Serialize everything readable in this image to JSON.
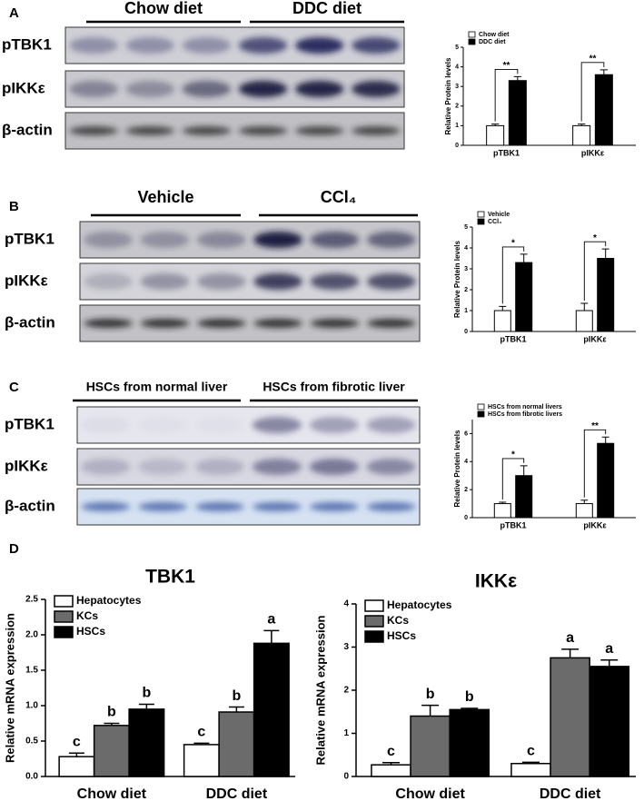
{
  "blots": [
    {
      "label": "A",
      "groups": [
        "Chow diet",
        "DDC diet"
      ],
      "rows": [
        "pTBK1",
        "pIKKε",
        "β-actin"
      ]
    },
    {
      "label": "B",
      "groups": [
        "Vehicle",
        "CCl₄"
      ],
      "rows": [
        "pTBK1",
        "pIKKε",
        "β-actin"
      ]
    },
    {
      "label": "C",
      "groups": [
        "HSCs from normal liver",
        "HSCs from fibrotic liver"
      ],
      "rows": [
        "pTBK1",
        "pIKKε",
        "β-actin"
      ]
    }
  ],
  "label_d": "D",
  "chart_data": [
    {
      "type": "bar",
      "ylabel": "Relative Protein levels",
      "categories": [
        "pTBK1",
        "pIKKε"
      ],
      "series": [
        {
          "name": "Chow diet",
          "color": "#ffffff",
          "values": [
            1,
            1
          ],
          "errors": [
            0.08,
            0.08
          ]
        },
        {
          "name": "DDC diet",
          "color": "#000000",
          "values": [
            3.3,
            3.6
          ],
          "errors": [
            0.2,
            0.25
          ]
        }
      ],
      "significance": [
        "**",
        "**"
      ],
      "ylim": [
        0,
        5
      ],
      "yticks": [
        0,
        1,
        2,
        3,
        4,
        5
      ]
    },
    {
      "type": "bar",
      "ylabel": "Relative Protein levels",
      "categories": [
        "pTBK1",
        "pIKKε"
      ],
      "series": [
        {
          "name": "Vehicle",
          "color": "#ffffff",
          "values": [
            1,
            1
          ],
          "errors": [
            0.2,
            0.35
          ]
        },
        {
          "name": "CCl₄",
          "color": "#000000",
          "values": [
            3.3,
            3.5
          ],
          "errors": [
            0.4,
            0.45
          ]
        }
      ],
      "significance": [
        "*",
        "*"
      ],
      "ylim": [
        0,
        5
      ],
      "yticks": [
        0,
        1,
        2,
        3,
        4,
        5
      ]
    },
    {
      "type": "bar",
      "ylabel": "Relative Protein levels",
      "categories": [
        "pTBK1",
        "pIKKε"
      ],
      "series": [
        {
          "name": "HSCs from normal livers",
          "color": "#ffffff",
          "values": [
            1,
            1
          ],
          "errors": [
            0.1,
            0.25
          ]
        },
        {
          "name": "HSCs from fibrotic livers",
          "color": "#000000",
          "values": [
            3,
            5.3
          ],
          "errors": [
            0.7,
            0.45
          ]
        }
      ],
      "significance": [
        "*",
        "**"
      ],
      "ylim": [
        0,
        7
      ],
      "yticks": [
        0,
        2,
        4,
        6
      ]
    },
    {
      "type": "bar",
      "title": "TBK1",
      "ylabel": "Relative mRNA expression",
      "categories": [
        "Chow diet",
        "DDC diet"
      ],
      "series": [
        {
          "name": "Hepatocytes",
          "color": "#ffffff",
          "values": [
            0.28,
            0.45
          ],
          "errors": [
            0.05,
            0.02
          ],
          "letters": [
            "c",
            "c"
          ]
        },
        {
          "name": "KCs",
          "color": "#6b6b6b",
          "values": [
            0.72,
            0.91
          ],
          "errors": [
            0.03,
            0.07
          ],
          "letters": [
            "b",
            "b"
          ]
        },
        {
          "name": "HSCs",
          "color": "#000000",
          "values": [
            0.95,
            1.88
          ],
          "errors": [
            0.07,
            0.18
          ],
          "letters": [
            "b",
            "a"
          ]
        }
      ],
      "ylim": [
        0,
        2.5
      ],
      "yticks": [
        {
          "value": 0,
          "label": "0.0"
        },
        0.5,
        {
          "value": 1,
          "label": "1.0"
        },
        1.5,
        {
          "value": 2,
          "label": "2.0"
        },
        2.5
      ]
    },
    {
      "type": "bar",
      "title": "IKKε",
      "ylabel": "Relative mRNA expression",
      "categories": [
        "Chow diet",
        "DDC diet"
      ],
      "series": [
        {
          "name": "Hepatocytes",
          "color": "#ffffff",
          "values": [
            0.27,
            0.3
          ],
          "errors": [
            0.05,
            0.03
          ],
          "letters": [
            "c",
            "c"
          ]
        },
        {
          "name": "KCs",
          "color": "#6b6b6b",
          "values": [
            1.4,
            2.75
          ],
          "errors": [
            0.25,
            0.2
          ],
          "letters": [
            "b",
            "a"
          ]
        },
        {
          "name": "HSCs",
          "color": "#000000",
          "values": [
            1.55,
            2.55
          ],
          "errors": [
            0.03,
            0.15
          ],
          "letters": [
            "b",
            "a"
          ]
        }
      ],
      "ylim": [
        0,
        4
      ],
      "yticks": [
        0,
        1,
        2,
        3,
        4
      ]
    }
  ]
}
